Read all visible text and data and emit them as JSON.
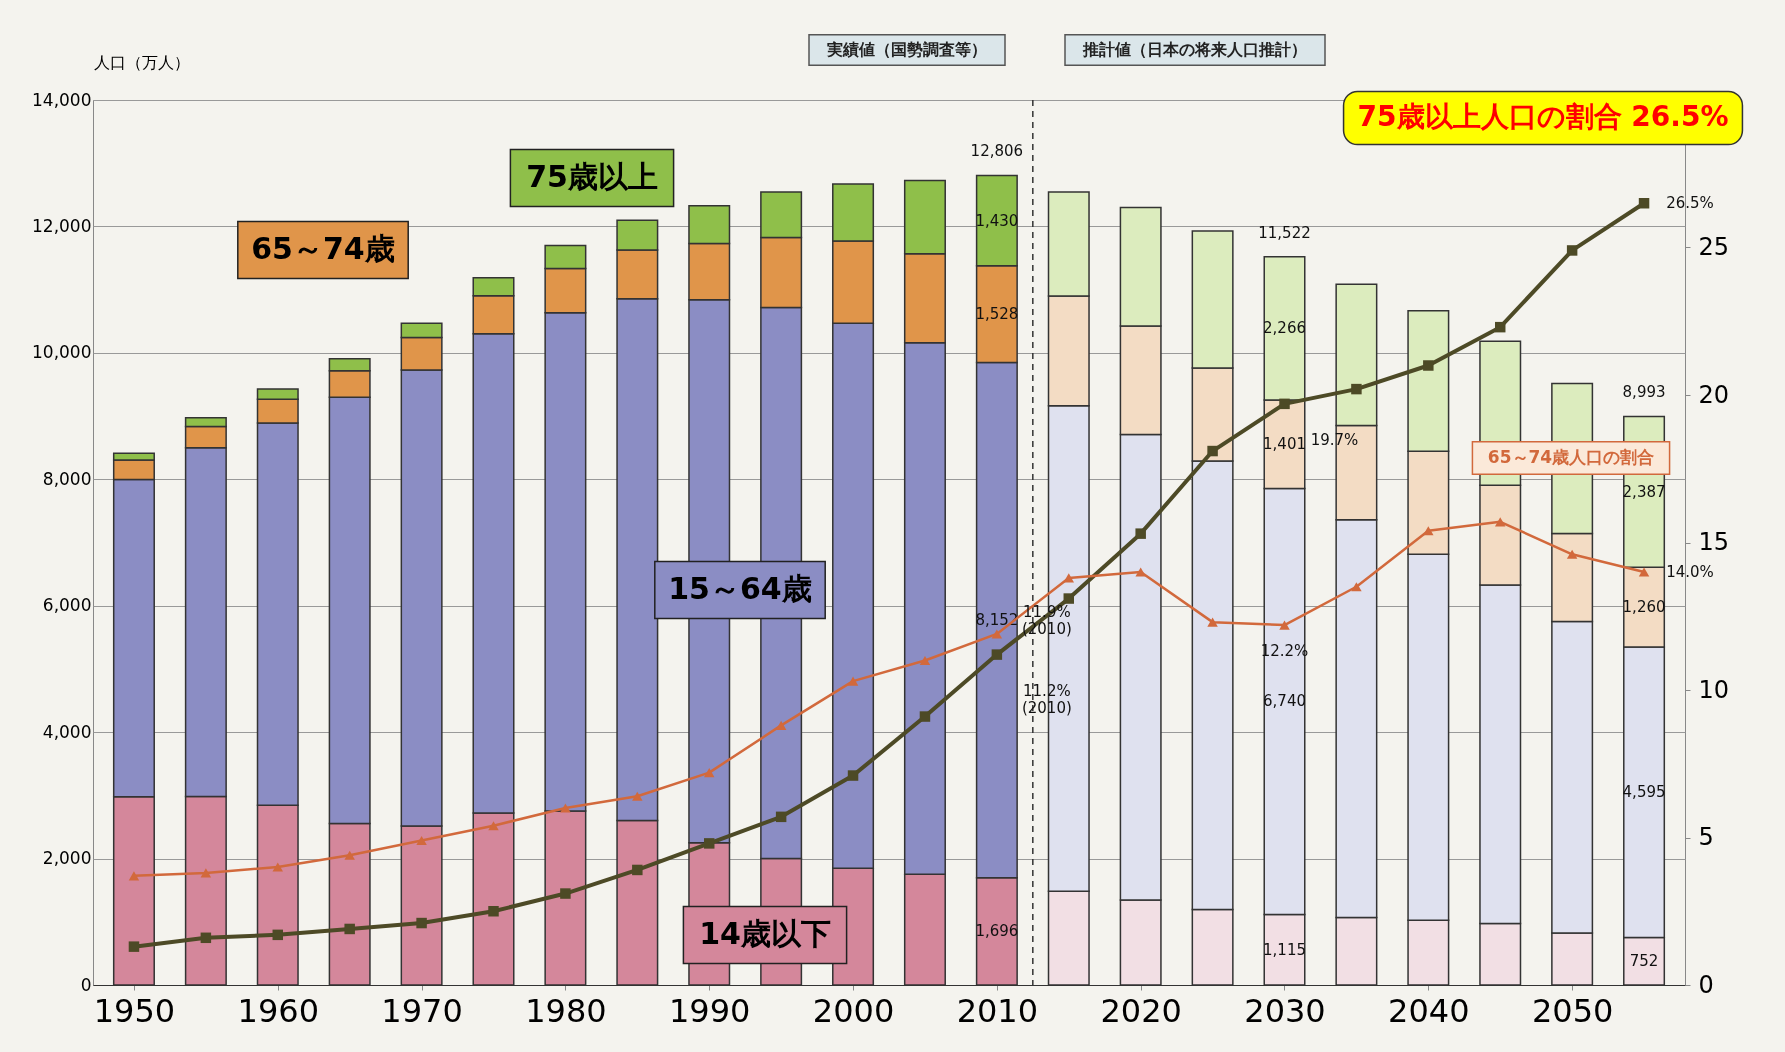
{
  "chart_data": {
    "type": "bar",
    "stacked": true,
    "ylabel": "人口（万人）",
    "x": [
      1950,
      1955,
      1960,
      1965,
      1970,
      1975,
      1980,
      1985,
      1990,
      1995,
      2000,
      2005,
      2010,
      2015,
      2020,
      2025,
      2030,
      2035,
      2040,
      2045,
      2050,
      2055
    ],
    "xlim": [
      1947.5,
      2057.5
    ],
    "xticks": [
      1950,
      1960,
      1970,
      1980,
      1990,
      2000,
      2010,
      2020,
      2030,
      2040,
      2050
    ],
    "ylim": [
      0,
      14000
    ],
    "yticks": [
      0,
      {
        "value": 2000,
        "label": "2,000"
      },
      {
        "value": 4000,
        "label": "4,000"
      },
      {
        "value": 6000,
        "label": "6,000"
      },
      {
        "value": 8000,
        "label": "8,000"
      },
      {
        "value": 10000,
        "label": "10,000"
      },
      {
        "value": 12000,
        "label": "12,000"
      },
      {
        "value": 14000,
        "label": "14,000"
      }
    ],
    "y2lim": [
      0,
      30
    ],
    "y2ticks": [
      0,
      5,
      10,
      15,
      20,
      25
    ],
    "grid": "y",
    "series": [
      {
        "name": "14歳以下",
        "color": "#d4879b",
        "colors": [
          "#d4879b",
          "#d4879b",
          "#d4879b",
          "#d4879b",
          "#d4879b",
          "#d4879b",
          "#d4879b",
          "#d4879b",
          "#d4879b",
          "#d4879b",
          "#d4879b",
          "#d4879b",
          "#d4879b",
          "#f2dfe4",
          "#f2dfe4",
          "#f2dfe4",
          "#f2dfe4",
          "#f2dfe4",
          "#f2dfe4",
          "#f2dfe4",
          "#f2dfe4",
          "#f2dfe4"
        ],
        "values": [
          2979,
          2980,
          2843,
          2553,
          2515,
          2722,
          2751,
          2603,
          2249,
          2001,
          1847,
          1752,
          1696,
          1484,
          1346,
          1195,
          1115,
          1068,
          1026,
          973,
          821,
          752
        ],
        "value_labels": [
          null,
          null,
          null,
          null,
          null,
          null,
          null,
          null,
          null,
          null,
          null,
          null,
          "1,696",
          null,
          null,
          null,
          "1,115",
          null,
          null,
          null,
          null,
          "752"
        ]
      },
      {
        "name": "15～64歳",
        "color": "#8b8dc4",
        "colors": [
          "#8b8dc4",
          "#8b8dc4",
          "#8b8dc4",
          "#8b8dc4",
          "#8b8dc4",
          "#8b8dc4",
          "#8b8dc4",
          "#8b8dc4",
          "#8b8dc4",
          "#8b8dc4",
          "#8b8dc4",
          "#8b8dc4",
          "#8b8dc4",
          "#dfe1ef",
          "#dfe1ef",
          "#dfe1ef",
          "#dfe1ef",
          "#dfe1ef",
          "#dfe1ef",
          "#dfe1ef",
          "#dfe1ef",
          "#dfe1ef"
        ],
        "values": [
          5017,
          5517,
          6047,
          6744,
          7212,
          7581,
          7883,
          8251,
          8590,
          8716,
          8622,
          8409,
          8152,
          7681,
          7363,
          7096,
          6740,
          6292,
          5787,
          5353,
          4930,
          4595
        ],
        "value_labels": [
          null,
          null,
          null,
          null,
          null,
          null,
          null,
          null,
          null,
          null,
          null,
          null,
          "8,152",
          null,
          null,
          null,
          "6,740",
          null,
          null,
          null,
          null,
          "4,595"
        ]
      },
      {
        "name": "65～74歳",
        "color": "#e0954a",
        "colors": [
          "#e0954a",
          "#e0954a",
          "#e0954a",
          "#e0954a",
          "#e0954a",
          "#e0954a",
          "#e0954a",
          "#e0954a",
          "#e0954a",
          "#e0954a",
          "#e0954a",
          "#e0954a",
          "#e0954a",
          "#f3dcc4",
          "#f3dcc4",
          "#f3dcc4",
          "#f3dcc4",
          "#f3dcc4",
          "#f3dcc4",
          "#f3dcc4",
          "#f3dcc4",
          "#f3dcc4"
        ],
        "values": [
          309,
          338,
          375,
          419,
          516,
          602,
          699,
          773,
          892,
          1109,
          1301,
          1407,
          1528,
          1733,
          1715,
          1468,
          1401,
          1491,
          1630,
          1579,
          1391,
          1260
        ],
        "value_labels": [
          null,
          null,
          null,
          null,
          null,
          null,
          null,
          null,
          null,
          null,
          null,
          null,
          "1,528",
          null,
          null,
          null,
          "1,401",
          null,
          null,
          null,
          null,
          "1,260"
        ]
      },
      {
        "name": "75歳以上",
        "color": "#8fbf4a",
        "colors": [
          "#8fbf4a",
          "#8fbf4a",
          "#8fbf4a",
          "#8fbf4a",
          "#8fbf4a",
          "#8fbf4a",
          "#8fbf4a",
          "#8fbf4a",
          "#8fbf4a",
          "#8fbf4a",
          "#8fbf4a",
          "#8fbf4a",
          "#8fbf4a",
          "#dcecbe",
          "#dcecbe",
          "#dcecbe",
          "#dcecbe",
          "#dcecbe",
          "#dcecbe",
          "#dcecbe",
          "#dcecbe",
          "#dcecbe"
        ],
        "values": [
          107,
          139,
          163,
          189,
          224,
          284,
          366,
          471,
          597,
          717,
          900,
          1160,
          1430,
          1645,
          1875,
          2167,
          2266,
          2234,
          2223,
          2277,
          2373,
          2387
        ],
        "value_labels": [
          null,
          null,
          null,
          null,
          null,
          null,
          null,
          null,
          null,
          null,
          null,
          null,
          "1,430",
          null,
          null,
          null,
          "2,266",
          null,
          null,
          null,
          null,
          "2,387"
        ]
      },
      {
        "type": "line",
        "axis": "y2",
        "color": "#4d4a26",
        "marker": "square",
        "line_style": "solid",
        "values": [
          1.3,
          1.6,
          1.7,
          1.9,
          2.1,
          2.5,
          3.1,
          3.9,
          4.8,
          5.7,
          7.1,
          9.1,
          11.2,
          13.1,
          15.3,
          18.1,
          19.7,
          20.2,
          21.0,
          22.3,
          24.9,
          26.5
        ],
        "value_labels": [
          null,
          null,
          null,
          null,
          null,
          null,
          null,
          null,
          null,
          null,
          null,
          null,
          "11.2% (2010)",
          null,
          null,
          null,
          "19.7%",
          null,
          null,
          null,
          null,
          "26.5%"
        ]
      },
      {
        "type": "line",
        "axis": "y2",
        "name": "65～74歳人口の割合",
        "color": "#d2693c",
        "marker": "triangle",
        "line_style": "solid",
        "values": [
          3.7,
          3.8,
          4.0,
          4.4,
          4.9,
          5.4,
          6.0,
          6.4,
          7.2,
          8.8,
          10.3,
          11.0,
          11.9,
          13.8,
          14.0,
          12.3,
          12.2,
          13.5,
          15.4,
          15.7,
          14.6,
          14.0
        ],
        "value_labels": [
          null,
          null,
          null,
          null,
          null,
          null,
          null,
          null,
          null,
          null,
          null,
          null,
          "11.9% (2010)",
          null,
          null,
          null,
          "12.2%",
          null,
          null,
          null,
          null,
          "14.0%"
        ]
      }
    ],
    "totals": [
      null,
      null,
      null,
      null,
      null,
      null,
      null,
      null,
      null,
      null,
      null,
      null,
      "12,806",
      null,
      null,
      null,
      "11,522",
      null,
      null,
      null,
      null,
      "8,993"
    ],
    "ref_lines": [
      {
        "axis": "x",
        "value": 2012.5,
        "line_style": "dashed",
        "color": "#333333"
      }
    ],
    "annotations": [
      "実績値（国勢調査等）",
      "推計値（日本の将来人口推計）",
      "75歳以上人口の割合 26.5%"
    ]
  }
}
